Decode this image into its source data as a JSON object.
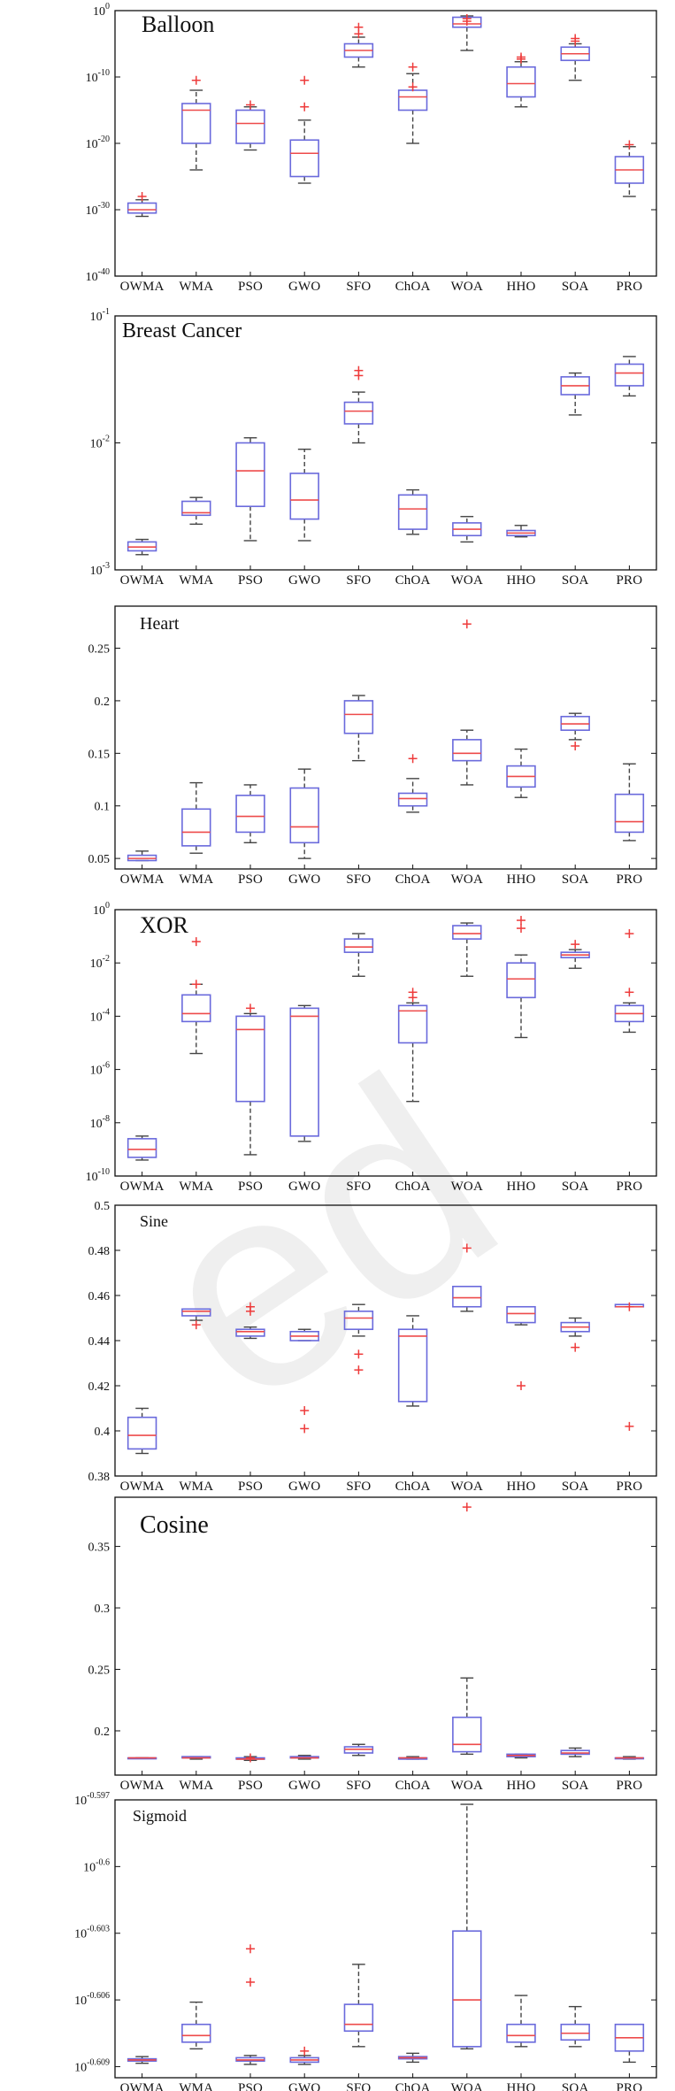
{
  "categories": [
    "OWMA",
    "WMA",
    "PSO",
    "GWO",
    "SFO",
    "ChOA",
    "WOA",
    "HHO",
    "SOA",
    "PRO"
  ],
  "colors": {
    "box": "#6a6adc",
    "median": "#ee4b4b",
    "whisker": "#444444",
    "outlier": "#ee3b3b",
    "frame": "#111111"
  },
  "chart_data": [
    {
      "type": "boxplot",
      "title": "Balloon",
      "yscale": "log",
      "ylim": [
        -40,
        0
      ],
      "yticks": [
        0,
        -10,
        -20,
        -30,
        -40
      ],
      "ytick_labels": [
        "10^0",
        "10^-10",
        "10^-20",
        "10^-30",
        "10^-40"
      ],
      "boxes": [
        {
          "category": "OWMA",
          "low": -31,
          "q1": -30.5,
          "median": -30,
          "q3": -29,
          "high": -28.5,
          "outliers": [
            -28
          ]
        },
        {
          "category": "WMA",
          "low": -24,
          "q1": -20,
          "median": -15,
          "q3": -14,
          "high": -12,
          "outliers": [
            -10.5
          ]
        },
        {
          "category": "PSO",
          "low": -21,
          "q1": -20,
          "median": -17,
          "q3": -15,
          "high": -14.5,
          "outliers": [
            -14.2
          ]
        },
        {
          "category": "GWO",
          "low": -26,
          "q1": -25,
          "median": -21.5,
          "q3": -19.5,
          "high": -16.5,
          "outliers": [
            -14.5,
            -10.5
          ]
        },
        {
          "category": "SFO",
          "low": -8.5,
          "q1": -7,
          "median": -6,
          "q3": -5,
          "high": -4,
          "outliers": [
            -3.5,
            -2.5
          ]
        },
        {
          "category": "ChOA",
          "low": -20,
          "q1": -15,
          "median": -13,
          "q3": -12,
          "high": -9.5,
          "outliers": [
            -11.5,
            -8.5
          ]
        },
        {
          "category": "WOA",
          "low": -6,
          "q1": -2.5,
          "median": -2,
          "q3": -1,
          "high": -0.8,
          "outliers": [
            -1.2,
            -1.6
          ]
        },
        {
          "category": "HHO",
          "low": -14.5,
          "q1": -13,
          "median": -11,
          "q3": -8.5,
          "high": -7.7,
          "outliers": [
            -7.3,
            -7
          ]
        },
        {
          "category": "SOA",
          "low": -10.5,
          "q1": -7.5,
          "median": -6.5,
          "q3": -5.5,
          "high": -5,
          "outliers": [
            -4.2,
            -4.6
          ]
        },
        {
          "category": "PRO",
          "low": -28,
          "q1": -26,
          "median": -24,
          "q3": -22,
          "high": -20.5,
          "outliers": [
            -20.2
          ]
        }
      ]
    },
    {
      "type": "boxplot",
      "title": "Breast Cancer",
      "yscale": "log",
      "ylim": [
        -3,
        -1
      ],
      "yticks": [
        -1,
        -2,
        -3
      ],
      "ytick_labels": [
        "10^-1",
        "10^-2",
        "10^-3"
      ],
      "boxes": [
        {
          "category": "OWMA",
          "low": -2.88,
          "q1": -2.85,
          "median": -2.82,
          "q3": -2.78,
          "high": -2.76,
          "outliers": []
        },
        {
          "category": "WMA",
          "low": -2.64,
          "q1": -2.57,
          "median": -2.55,
          "q3": -2.46,
          "high": -2.43,
          "outliers": []
        },
        {
          "category": "PSO",
          "low": -2.77,
          "q1": -2.5,
          "median": -2.22,
          "q3": -2.0,
          "high": -1.96,
          "outliers": []
        },
        {
          "category": "GWO",
          "low": -2.77,
          "q1": -2.6,
          "median": -2.45,
          "q3": -2.24,
          "high": -2.05,
          "outliers": []
        },
        {
          "category": "SFO",
          "low": -2.0,
          "q1": -1.85,
          "median": -1.75,
          "q3": -1.68,
          "high": -1.6,
          "outliers": [
            -1.47,
            -1.43
          ]
        },
        {
          "category": "ChOA",
          "low": -2.72,
          "q1": -2.68,
          "median": -2.52,
          "q3": -2.41,
          "high": -2.37,
          "outliers": []
        },
        {
          "category": "WOA",
          "low": -2.78,
          "q1": -2.73,
          "median": -2.68,
          "q3": -2.63,
          "high": -2.58,
          "outliers": []
        },
        {
          "category": "HHO",
          "low": -2.74,
          "q1": -2.73,
          "median": -2.71,
          "q3": -2.69,
          "high": -2.65,
          "outliers": []
        },
        {
          "category": "SOA",
          "low": -1.78,
          "q1": -1.62,
          "median": -1.55,
          "q3": -1.48,
          "high": -1.45,
          "outliers": []
        },
        {
          "category": "PRO",
          "low": -1.63,
          "q1": -1.55,
          "median": -1.45,
          "q3": -1.38,
          "high": -1.32,
          "outliers": []
        }
      ]
    },
    {
      "type": "boxplot",
      "title": "Heart",
      "yscale": "linear",
      "ylim": [
        0.04,
        0.29
      ],
      "yticks": [
        0.05,
        0.1,
        0.15,
        0.2,
        0.25
      ],
      "ytick_labels": [
        "0.05",
        "0.1",
        "0.15",
        "0.2",
        "0.25"
      ],
      "boxes": [
        {
          "category": "OWMA",
          "low": 0.048,
          "q1": 0.048,
          "median": 0.05,
          "q3": 0.053,
          "high": 0.057,
          "outliers": []
        },
        {
          "category": "WMA",
          "low": 0.055,
          "q1": 0.062,
          "median": 0.075,
          "q3": 0.097,
          "high": 0.122,
          "outliers": []
        },
        {
          "category": "PSO",
          "low": 0.065,
          "q1": 0.075,
          "median": 0.09,
          "q3": 0.11,
          "high": 0.12,
          "outliers": []
        },
        {
          "category": "GWO",
          "low": 0.05,
          "q1": 0.065,
          "median": 0.08,
          "q3": 0.117,
          "high": 0.135,
          "outliers": []
        },
        {
          "category": "SFO",
          "low": 0.143,
          "q1": 0.169,
          "median": 0.187,
          "q3": 0.2,
          "high": 0.205,
          "outliers": []
        },
        {
          "category": "ChOA",
          "low": 0.094,
          "q1": 0.1,
          "median": 0.107,
          "q3": 0.112,
          "high": 0.126,
          "outliers": [
            0.145
          ]
        },
        {
          "category": "WOA",
          "low": 0.12,
          "q1": 0.143,
          "median": 0.15,
          "q3": 0.163,
          "high": 0.172,
          "outliers": [
            0.273
          ]
        },
        {
          "category": "HHO",
          "low": 0.108,
          "q1": 0.118,
          "median": 0.128,
          "q3": 0.138,
          "high": 0.154,
          "outliers": []
        },
        {
          "category": "SOA",
          "low": 0.163,
          "q1": 0.172,
          "median": 0.178,
          "q3": 0.185,
          "high": 0.188,
          "outliers": [
            0.157
          ]
        },
        {
          "category": "PRO",
          "low": 0.067,
          "q1": 0.075,
          "median": 0.085,
          "q3": 0.111,
          "high": 0.14,
          "outliers": []
        }
      ]
    },
    {
      "type": "boxplot",
      "title": "XOR",
      "yscale": "log",
      "ylim": [
        -10,
        0
      ],
      "yticks": [
        0,
        -2,
        -4,
        -6,
        -8,
        -10
      ],
      "ytick_labels": [
        "10^0",
        "10^-2",
        "10^-4",
        "10^-6",
        "10^-8",
        "10^-10"
      ],
      "boxes": [
        {
          "category": "OWMA",
          "low": -9.4,
          "q1": -9.3,
          "median": -9.0,
          "q3": -8.6,
          "high": -8.5,
          "outliers": []
        },
        {
          "category": "WMA",
          "low": -5.4,
          "q1": -4.2,
          "median": -3.9,
          "q3": -3.2,
          "high": -2.8,
          "outliers": [
            -2.8,
            -1.2
          ]
        },
        {
          "category": "PSO",
          "low": -9.2,
          "q1": -7.2,
          "median": -4.5,
          "q3": -4.0,
          "high": -3.9,
          "outliers": [
            -3.7
          ]
        },
        {
          "category": "GWO",
          "low": -8.7,
          "q1": -8.5,
          "median": -4.0,
          "q3": -3.7,
          "high": -3.6,
          "outliers": []
        },
        {
          "category": "SFO",
          "low": -2.5,
          "q1": -1.6,
          "median": -1.4,
          "q3": -1.1,
          "high": -0.9,
          "outliers": []
        },
        {
          "category": "ChOA",
          "low": -7.2,
          "q1": -5.0,
          "median": -3.8,
          "q3": -3.6,
          "high": -3.5,
          "outliers": [
            -3.3,
            -3.1
          ]
        },
        {
          "category": "WOA",
          "low": -2.5,
          "q1": -1.1,
          "median": -0.9,
          "q3": -0.6,
          "high": -0.5,
          "outliers": []
        },
        {
          "category": "HHO",
          "low": -4.8,
          "q1": -3.3,
          "median": -2.6,
          "q3": -2.0,
          "high": -1.7,
          "outliers": [
            -0.7,
            -0.4
          ]
        },
        {
          "category": "SOA",
          "low": -2.2,
          "q1": -1.8,
          "median": -1.7,
          "q3": -1.6,
          "high": -1.5,
          "outliers": [
            -1.3
          ]
        },
        {
          "category": "PRO",
          "low": -4.6,
          "q1": -4.2,
          "median": -3.9,
          "q3": -3.6,
          "high": -3.5,
          "outliers": [
            -3.1,
            -0.9
          ]
        }
      ]
    },
    {
      "type": "boxplot",
      "title": "Sine",
      "yscale": "linear",
      "ylim": [
        0.38,
        0.5
      ],
      "yticks": [
        0.38,
        0.4,
        0.42,
        0.44,
        0.46,
        0.48,
        0.5
      ],
      "ytick_labels": [
        "0.38",
        "0.4",
        "0.42",
        "0.44",
        "0.46",
        "0.48",
        "0.5"
      ],
      "boxes": [
        {
          "category": "OWMA",
          "low": 0.39,
          "q1": 0.392,
          "median": 0.398,
          "q3": 0.406,
          "high": 0.41,
          "outliers": []
        },
        {
          "category": "WMA",
          "low": 0.449,
          "q1": 0.451,
          "median": 0.453,
          "q3": 0.454,
          "high": 0.454,
          "outliers": [
            0.447
          ]
        },
        {
          "category": "PSO",
          "low": 0.441,
          "q1": 0.442,
          "median": 0.444,
          "q3": 0.445,
          "high": 0.446,
          "outliers": [
            0.453,
            0.455
          ]
        },
        {
          "category": "GWO",
          "low": 0.44,
          "q1": 0.44,
          "median": 0.442,
          "q3": 0.444,
          "high": 0.445,
          "outliers": [
            0.409,
            0.401
          ]
        },
        {
          "category": "SFO",
          "low": 0.442,
          "q1": 0.445,
          "median": 0.45,
          "q3": 0.453,
          "high": 0.456,
          "outliers": [
            0.434,
            0.427
          ]
        },
        {
          "category": "ChOA",
          "low": 0.411,
          "q1": 0.413,
          "median": 0.442,
          "q3": 0.445,
          "high": 0.451,
          "outliers": []
        },
        {
          "category": "WOA",
          "low": 0.453,
          "q1": 0.455,
          "median": 0.459,
          "q3": 0.464,
          "high": 0.464,
          "outliers": [
            0.481
          ]
        },
        {
          "category": "HHO",
          "low": 0.447,
          "q1": 0.448,
          "median": 0.452,
          "q3": 0.455,
          "high": 0.455,
          "outliers": [
            0.42
          ]
        },
        {
          "category": "SOA",
          "low": 0.442,
          "q1": 0.444,
          "median": 0.446,
          "q3": 0.448,
          "high": 0.45,
          "outliers": [
            0.437
          ]
        },
        {
          "category": "PRO",
          "low": 0.455,
          "q1": 0.455,
          "median": 0.455,
          "q3": 0.456,
          "high": 0.456,
          "outliers": [
            0.455,
            0.402
          ]
        }
      ]
    },
    {
      "type": "boxplot",
      "title": "Cosine",
      "yscale": "linear",
      "ylim": [
        0.164,
        0.39
      ],
      "yticks": [
        0.2,
        0.25,
        0.3,
        0.35
      ],
      "ytick_labels": [
        "0.2",
        "0.25",
        "0.3",
        "0.35"
      ],
      "boxes": [
        {
          "category": "OWMA",
          "low": 0.178,
          "q1": 0.178,
          "median": 0.178,
          "q3": 0.178,
          "high": 0.178,
          "outliers": []
        },
        {
          "category": "WMA",
          "low": 0.177,
          "q1": 0.178,
          "median": 0.178,
          "q3": 0.179,
          "high": 0.179,
          "outliers": []
        },
        {
          "category": "PSO",
          "low": 0.176,
          "q1": 0.177,
          "median": 0.177,
          "q3": 0.178,
          "high": 0.179,
          "outliers": [
            0.178
          ]
        },
        {
          "category": "GWO",
          "low": 0.177,
          "q1": 0.178,
          "median": 0.178,
          "q3": 0.179,
          "high": 0.18,
          "outliers": []
        },
        {
          "category": "SFO",
          "low": 0.18,
          "q1": 0.182,
          "median": 0.185,
          "q3": 0.187,
          "high": 0.189,
          "outliers": []
        },
        {
          "category": "ChOA",
          "low": 0.177,
          "q1": 0.177,
          "median": 0.178,
          "q3": 0.178,
          "high": 0.179,
          "outliers": []
        },
        {
          "category": "WOA",
          "low": 0.181,
          "q1": 0.183,
          "median": 0.189,
          "q3": 0.211,
          "high": 0.243,
          "outliers": [
            0.382
          ]
        },
        {
          "category": "HHO",
          "low": 0.178,
          "q1": 0.179,
          "median": 0.18,
          "q3": 0.181,
          "high": 0.181,
          "outliers": []
        },
        {
          "category": "SOA",
          "low": 0.179,
          "q1": 0.181,
          "median": 0.182,
          "q3": 0.184,
          "high": 0.186,
          "outliers": []
        },
        {
          "category": "PRO",
          "low": 0.177,
          "q1": 0.178,
          "median": 0.178,
          "q3": 0.178,
          "high": 0.179,
          "outliers": []
        }
      ]
    },
    {
      "type": "boxplot",
      "title": "Sigmoid",
      "yscale": "log",
      "ylim": [
        -0.6095,
        -0.597
      ],
      "yticks": [
        -0.597,
        -0.6,
        -0.603,
        -0.606,
        -0.609
      ],
      "ytick_labels": [
        "10^-0.597",
        "10^-0.6",
        "10^-0.603",
        "10^-0.606",
        "10^-0.609"
      ],
      "boxes": [
        {
          "category": "OWMA",
          "low": -0.60885,
          "q1": -0.60875,
          "median": -0.6087,
          "q3": -0.60865,
          "high": -0.60855,
          "outliers": []
        },
        {
          "category": "WMA",
          "low": -0.6082,
          "q1": -0.6079,
          "median": -0.6076,
          "q3": -0.6071,
          "high": -0.6061,
          "outliers": []
        },
        {
          "category": "PSO",
          "low": -0.6089,
          "q1": -0.60875,
          "median": -0.6087,
          "q3": -0.6086,
          "high": -0.6085,
          "outliers": [
            -0.6037,
            -0.6052
          ]
        },
        {
          "category": "GWO",
          "low": -0.6089,
          "q1": -0.6088,
          "median": -0.6087,
          "q3": -0.6086,
          "high": -0.6085,
          "outliers": [
            -0.6083
          ]
        },
        {
          "category": "SFO",
          "low": -0.6081,
          "q1": -0.6074,
          "median": -0.6071,
          "q3": -0.6062,
          "high": -0.6044,
          "outliers": []
        },
        {
          "category": "ChOA",
          "low": -0.6088,
          "q1": -0.60865,
          "median": -0.6086,
          "q3": -0.60855,
          "high": -0.6084,
          "outliers": []
        },
        {
          "category": "WOA",
          "low": -0.6082,
          "q1": -0.6081,
          "median": -0.606,
          "q3": -0.6029,
          "high": -0.5972,
          "outliers": []
        },
        {
          "category": "HHO",
          "low": -0.6081,
          "q1": -0.6079,
          "median": -0.6076,
          "q3": -0.6071,
          "high": -0.6058,
          "outliers": []
        },
        {
          "category": "SOA",
          "low": -0.6081,
          "q1": -0.6078,
          "median": -0.6075,
          "q3": -0.6071,
          "high": -0.6063,
          "outliers": []
        },
        {
          "category": "PRO",
          "low": -0.6088,
          "q1": -0.6083,
          "median": -0.6077,
          "q3": -0.6071,
          "high": -0.6071,
          "outliers": []
        }
      ]
    }
  ]
}
